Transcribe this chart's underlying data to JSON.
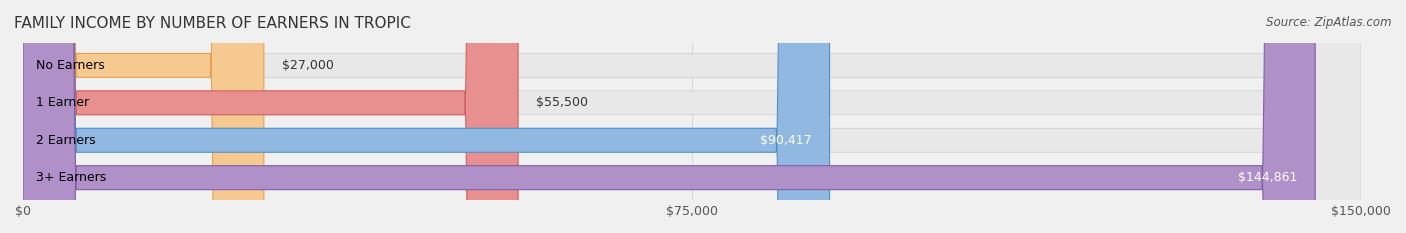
{
  "title": "FAMILY INCOME BY NUMBER OF EARNERS IN TROPIC",
  "source": "Source: ZipAtlas.com",
  "categories": [
    "No Earners",
    "1 Earner",
    "2 Earners",
    "3+ Earners"
  ],
  "values": [
    27000,
    55500,
    90417,
    144861
  ],
  "bar_colors": [
    "#f5c990",
    "#e89090",
    "#90b8e0",
    "#b090c8"
  ],
  "bar_edge_colors": [
    "#e8a050",
    "#d06060",
    "#5090c8",
    "#8060a8"
  ],
  "value_labels": [
    "$27,000",
    "$55,500",
    "$90,417",
    "$144,861"
  ],
  "xlim": [
    0,
    150000
  ],
  "xticks": [
    0,
    75000,
    150000
  ],
  "xtick_labels": [
    "$0",
    "$75,000",
    "$150,000"
  ],
  "background_color": "#f0f0f0",
  "bar_bg_color": "#e8e8e8",
  "title_fontsize": 11,
  "source_fontsize": 8.5,
  "label_fontsize": 9,
  "value_fontsize": 9,
  "tick_fontsize": 9
}
